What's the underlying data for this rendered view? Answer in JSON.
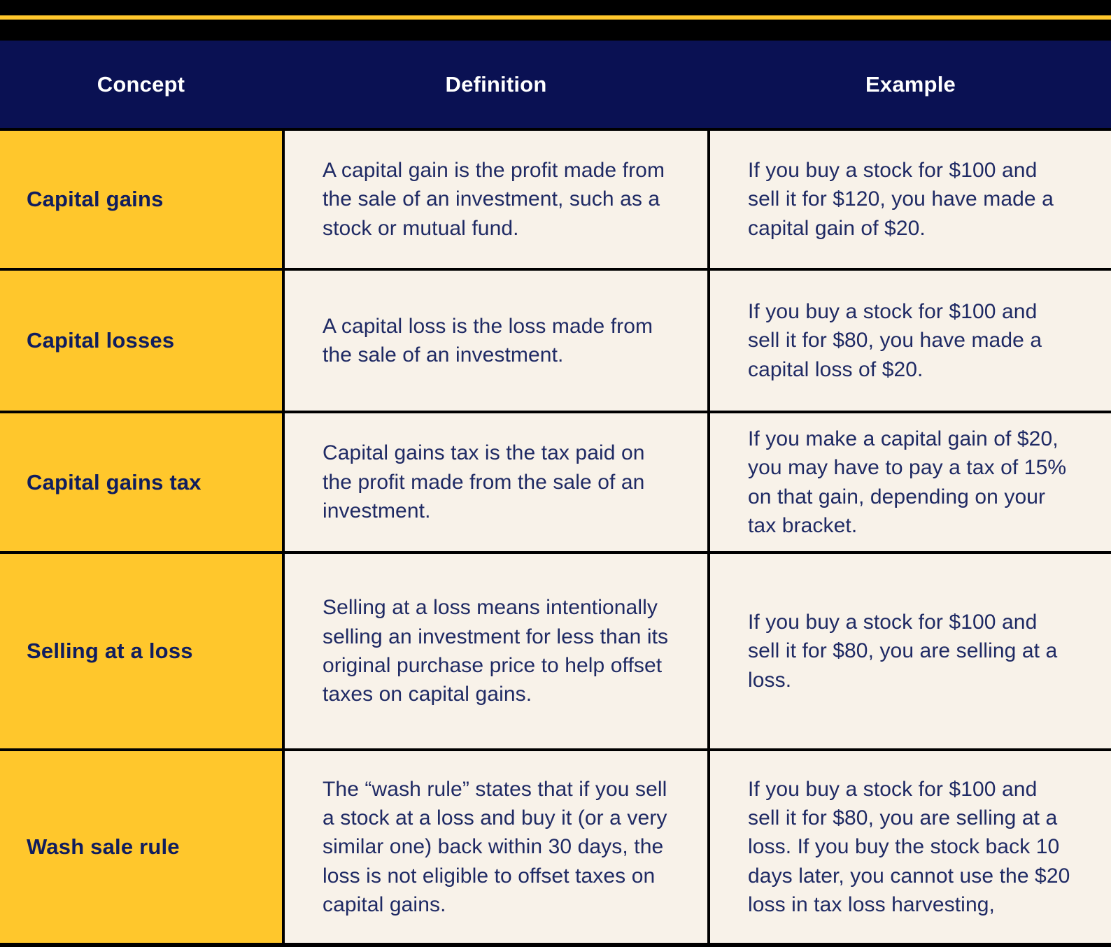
{
  "colors": {
    "top_bar": "#000000",
    "accent_stripe": "#ffc72c",
    "header_background": "#0a1153",
    "header_text": "#ffffff",
    "concept_column_background": "#ffc72c",
    "concept_text": "#101d5e",
    "cell_background": "#f8f2e9",
    "body_text": "#1f2a64",
    "gridline": "#000000"
  },
  "header": {
    "columns": [
      "Concept",
      "Definition",
      "Example"
    ]
  },
  "rows": [
    {
      "concept": "Capital gains",
      "definition": "A capital gain is the profit made from the sale of an investment, such as a stock or mutual fund.",
      "example": "If you buy a stock for $100 and sell it for $120, you have made a capital gain of $20."
    },
    {
      "concept": "Capital losses",
      "definition": "A capital loss is the loss made from the sale of an investment.",
      "example": "If you buy a stock for $100 and sell it for $80, you have made a capital loss of $20."
    },
    {
      "concept": "Capital gains tax",
      "definition": "Capital gains tax is the tax paid on the profit made from the sale of an investment.",
      "example": "If you make a capital gain of $20, you may have to pay a tax of 15% on that gain, depending on your tax bracket."
    },
    {
      "concept": "Selling at a loss",
      "definition": "Selling at a loss means intentionally selling an investment for less than its original purchase price to help offset taxes on capital gains.",
      "example": "If you buy a stock for $100 and sell it for $80, you are selling at a loss."
    },
    {
      "concept": "Wash sale rule",
      "definition": "The “wash rule” states that if you sell a stock at a loss and buy it (or a very similar one) back within 30 days, the loss is not eligible to offset taxes on capital gains.",
      "example": "If you buy a stock for $100 and sell it for $80, you are selling at a loss. If you buy the stock back 10 days later, you cannot use the $20 loss in tax loss harvesting,"
    }
  ]
}
